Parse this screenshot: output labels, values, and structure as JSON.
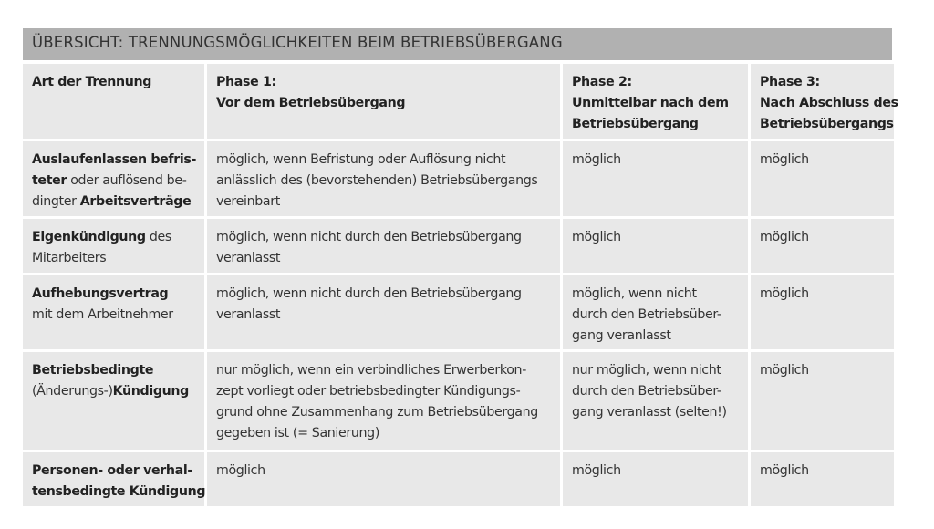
{
  "title": "ÜBERSICHT: TRENNUNGSMÖGLICHKEITEN BEIM BETRIEBSÜBERGANG",
  "header": [
    [
      [
        {
          "t": "Art der Trennung",
          "b": true
        }
      ]
    ],
    [
      [
        {
          "t": "Phase 1:",
          "b": true
        }
      ],
      [
        {
          "t": "Vor dem Betriebsübergang",
          "b": true
        }
      ]
    ],
    [
      [
        {
          "t": "Phase 2:",
          "b": true
        }
      ],
      [
        {
          "t": "Unmittelbar nach dem",
          "b": true
        }
      ],
      [
        {
          "t": "Betriebsübergang",
          "b": true
        }
      ]
    ],
    [
      [
        {
          "t": "Phase 3:",
          "b": true
        }
      ],
      [
        {
          "t": "Nach Abschluss des",
          "b": true
        }
      ],
      [
        {
          "t": "Betriebsübergangs",
          "b": true
        }
      ]
    ]
  ],
  "rows": [
    [
      [
        [
          {
            "t": "Auslaufenlassen befris-",
            "b": true
          }
        ],
        [
          {
            "t": "teter",
            "b": true
          },
          {
            "t": " oder auflösend be-",
            "b": false
          }
        ],
        [
          {
            "t": "dingter ",
            "b": false
          },
          {
            "t": "Arbeitsverträge",
            "b": true
          }
        ]
      ],
      [
        [
          {
            "t": "möglich, wenn Befristung oder Auflösung nicht",
            "b": false
          }
        ],
        [
          {
            "t": "anlässlich des (bevorstehenden) Betriebsübergangs",
            "b": false
          }
        ],
        [
          {
            "t": "vereinbart",
            "b": false
          }
        ]
      ],
      [
        [
          {
            "t": "möglich",
            "b": false
          }
        ]
      ],
      [
        [
          {
            "t": "möglich",
            "b": false
          }
        ]
      ]
    ],
    [
      [
        [
          {
            "t": "Eigenkündigung",
            "b": true
          },
          {
            "t": " des",
            "b": false
          }
        ],
        [
          {
            "t": "Mitarbeiters",
            "b": false
          }
        ]
      ],
      [
        [
          {
            "t": "möglich, wenn nicht durch den Betriebsübergang",
            "b": false
          }
        ],
        [
          {
            "t": "veranlasst",
            "b": false
          }
        ]
      ],
      [
        [
          {
            "t": "möglich",
            "b": false
          }
        ]
      ],
      [
        [
          {
            "t": "möglich",
            "b": false
          }
        ]
      ]
    ],
    [
      [
        [
          {
            "t": "Aufhebungsvertrag",
            "b": true
          }
        ],
        [
          {
            "t": "mit dem Arbeitnehmer",
            "b": false
          }
        ]
      ],
      [
        [
          {
            "t": "möglich, wenn nicht durch den Betriebsübergang",
            "b": false
          }
        ],
        [
          {
            "t": "veranlasst",
            "b": false
          }
        ]
      ],
      [
        [
          {
            "t": "möglich, wenn nicht",
            "b": false
          }
        ],
        [
          {
            "t": "durch den Betriebsüber-",
            "b": false
          }
        ],
        [
          {
            "t": "gang veranlasst",
            "b": false
          }
        ]
      ],
      [
        [
          {
            "t": "möglich",
            "b": false
          }
        ]
      ]
    ],
    [
      [
        [
          {
            "t": "Betriebsbedingte",
            "b": true
          }
        ],
        [
          {
            "t": "(Änderungs-)",
            "b": false
          },
          {
            "t": "Kündigung",
            "b": true
          }
        ]
      ],
      [
        [
          {
            "t": "nur möglich, wenn ein verbindliches Erwerberkon-",
            "b": false
          }
        ],
        [
          {
            "t": "zept vorliegt oder betriebsbedingter Kündigungs-",
            "b": false
          }
        ],
        [
          {
            "t": "grund ohne Zusammenhang zum Betriebsübergang",
            "b": false
          }
        ],
        [
          {
            "t": "gegeben ist (= Sanierung)",
            "b": false
          }
        ]
      ],
      [
        [
          {
            "t": "nur möglich, wenn nicht",
            "b": false
          }
        ],
        [
          {
            "t": "durch den Betriebsüber-",
            "b": false
          }
        ],
        [
          {
            "t": "gang veranlasst (selten!)",
            "b": false
          }
        ]
      ],
      [
        [
          {
            "t": "möglich",
            "b": false
          }
        ]
      ]
    ],
    [
      [
        [
          {
            "t": "Personen- oder verhal-",
            "b": true
          }
        ],
        [
          {
            "t": "tensbedingte Kündigung",
            "b": true
          }
        ]
      ],
      [
        [
          {
            "t": "möglich",
            "b": false
          }
        ]
      ],
      [
        [
          {
            "t": "möglich",
            "b": false
          }
        ]
      ],
      [
        [
          {
            "t": "möglich",
            "b": false
          }
        ]
      ]
    ]
  ],
  "colors": {
    "title_bg": "#b1b1b1",
    "cell_bg": "#e8e8e8"
  }
}
